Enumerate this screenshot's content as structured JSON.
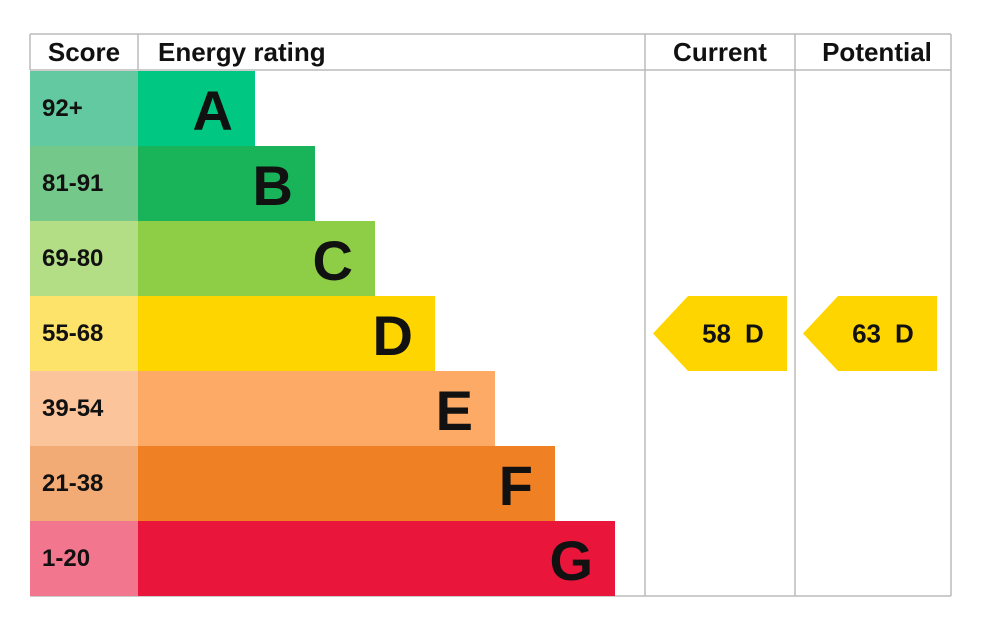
{
  "header": {
    "score": "Score",
    "rating": "Energy rating",
    "current": "Current",
    "potential": "Potential"
  },
  "bands": [
    {
      "score": "92+",
      "letter": "A",
      "score_color": "#62c9a0",
      "color": "#00c781"
    },
    {
      "score": "81-91",
      "letter": "B",
      "score_color": "#74c98a",
      "color": "#19b459"
    },
    {
      "score": "69-80",
      "letter": "C",
      "score_color": "#b4de86",
      "color": "#8dce46"
    },
    {
      "score": "55-68",
      "letter": "D",
      "score_color": "#fde36a",
      "color": "#ffd500"
    },
    {
      "score": "39-54",
      "letter": "E",
      "score_color": "#fcc49a",
      "color": "#fcaa65"
    },
    {
      "score": "21-38",
      "letter": "F",
      "score_color": "#f3ab75",
      "color": "#ef8023"
    },
    {
      "score": "1-20",
      "letter": "G",
      "score_color": "#f2768d",
      "color": "#e9153b"
    }
  ],
  "current": {
    "value": "58",
    "letter": "D"
  },
  "potential": {
    "value": "63",
    "letter": "D"
  }
}
